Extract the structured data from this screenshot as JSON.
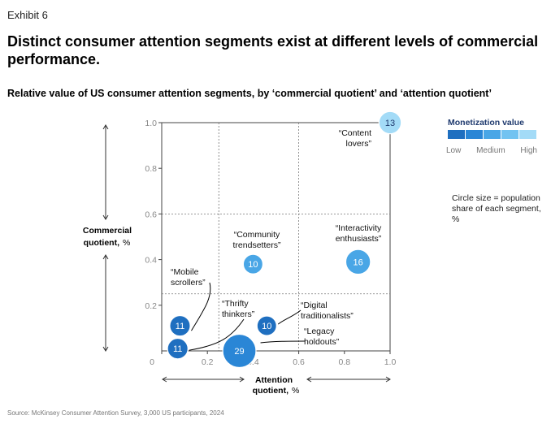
{
  "exhibit_label": "Exhibit 6",
  "headline": "Distinct consumer attention segments exist at different levels of commercial performance.",
  "chart_data": {
    "type": "scatter",
    "title": "Relative value of US consumer attention segments, by ‘commercial quotient’ and ‘attention quotient’",
    "xlabel_line1": "Attention",
    "xlabel_line2": "quotient,",
    "xlabel_unit": "%",
    "ylabel_line1": "Commercial",
    "ylabel_line2": "quotient,",
    "ylabel_unit": "%",
    "xlim": [
      0,
      1
    ],
    "ylim": [
      0,
      1
    ],
    "x_ticks": [
      "0",
      "0.2",
      "0.4",
      "0.6",
      "0.8",
      "1.0"
    ],
    "y_ticks": [
      "0.2",
      "0.4",
      "0.6",
      "0.8",
      "1.0"
    ],
    "grid": "dashed quadrant lines at 0.25 and 0.6",
    "points": [
      {
        "label": "“Content lovers”",
        "label_lines": [
          "“Content",
          "lovers”"
        ],
        "x": 1.0,
        "y": 1.0,
        "size": 13,
        "monetization": "high"
      },
      {
        "label": "“Interactivity enthusiasts”",
        "label_lines": [
          "“Interactivity",
          "enthusiasts”"
        ],
        "x": 0.86,
        "y": 0.39,
        "size": 16,
        "monetization": "medium-high"
      },
      {
        "label": "“Community trendsetters”",
        "label_lines": [
          "“Community",
          "trendsetters”"
        ],
        "x": 0.4,
        "y": 0.38,
        "size": 10,
        "monetization": "medium-high"
      },
      {
        "label": "“Mobile scrollers”",
        "label_lines": [
          "“Mobile",
          "scrollers”"
        ],
        "x": 0.08,
        "y": 0.11,
        "size": 11,
        "monetization": "low"
      },
      {
        "label": "“Thrifty thinkers”",
        "label_lines": [
          "“Thrifty",
          "thinkers”"
        ],
        "x": 0.07,
        "y": 0.01,
        "size": 11,
        "monetization": "low"
      },
      {
        "label": "“Legacy holdouts”",
        "label_lines": [
          "“Legacy",
          "holdouts”"
        ],
        "x": 0.34,
        "y": 0.0,
        "size": 29,
        "monetization": "medium"
      },
      {
        "label": "“Digital traditionalists”",
        "label_lines": [
          "“Digital",
          "traditionalists”"
        ],
        "x": 0.46,
        "y": 0.11,
        "size": 10,
        "monetization": "low"
      }
    ],
    "legend": {
      "title": "Monetization value",
      "low_label": "Low",
      "medium_label": "Medium",
      "high_label": "High",
      "colors": [
        "#1f6fc0",
        "#2a86d6",
        "#49a6e6",
        "#72c3f1",
        "#a3dbf7"
      ],
      "size_note": "Circle size = population share of each segment, %"
    }
  },
  "source": "Source: McKinsey Consumer Attention Survey, 3,000 US participants, 2024"
}
